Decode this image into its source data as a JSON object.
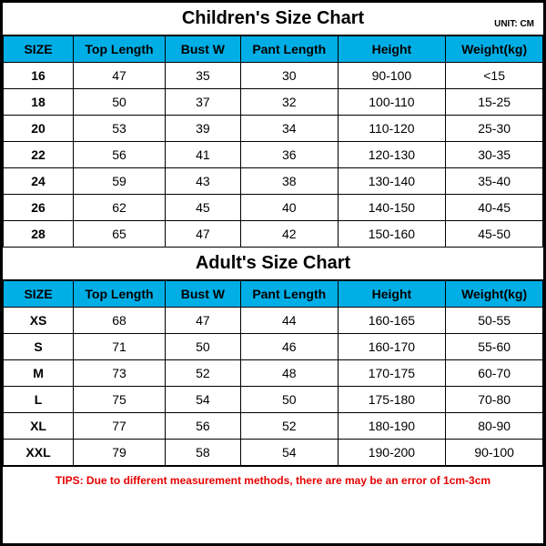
{
  "colors": {
    "header_bg": "#00aee6",
    "border": "#000000",
    "background": "#ffffff",
    "tips_color": "#e60000"
  },
  "children": {
    "title": "Children's Size Chart",
    "unit": "UNIT: CM",
    "columns": [
      "SIZE",
      "Top Length",
      "Bust W",
      "Pant Length",
      "Height",
      "Weight(kg)"
    ],
    "rows": [
      [
        "16",
        "47",
        "35",
        "30",
        "90-100",
        "<15"
      ],
      [
        "18",
        "50",
        "37",
        "32",
        "100-110",
        "15-25"
      ],
      [
        "20",
        "53",
        "39",
        "34",
        "110-120",
        "25-30"
      ],
      [
        "22",
        "56",
        "41",
        "36",
        "120-130",
        "30-35"
      ],
      [
        "24",
        "59",
        "43",
        "38",
        "130-140",
        "35-40"
      ],
      [
        "26",
        "62",
        "45",
        "40",
        "140-150",
        "40-45"
      ],
      [
        "28",
        "65",
        "47",
        "42",
        "150-160",
        "45-50"
      ]
    ]
  },
  "adult": {
    "title": "Adult's Size Chart",
    "columns": [
      "SIZE",
      "Top Length",
      "Bust W",
      "Pant Length",
      "Height",
      "Weight(kg)"
    ],
    "rows": [
      [
        "XS",
        "68",
        "47",
        "44",
        "160-165",
        "50-55"
      ],
      [
        "S",
        "71",
        "50",
        "46",
        "160-170",
        "55-60"
      ],
      [
        "M",
        "73",
        "52",
        "48",
        "170-175",
        "60-70"
      ],
      [
        "L",
        "75",
        "54",
        "50",
        "175-180",
        "70-80"
      ],
      [
        "XL",
        "77",
        "56",
        "52",
        "180-190",
        "80-90"
      ],
      [
        "XXL",
        "79",
        "58",
        "54",
        "190-200",
        "90-100"
      ]
    ]
  },
  "tips": "TIPS: Due to different measurement methods, there are may be an error of 1cm-3cm"
}
